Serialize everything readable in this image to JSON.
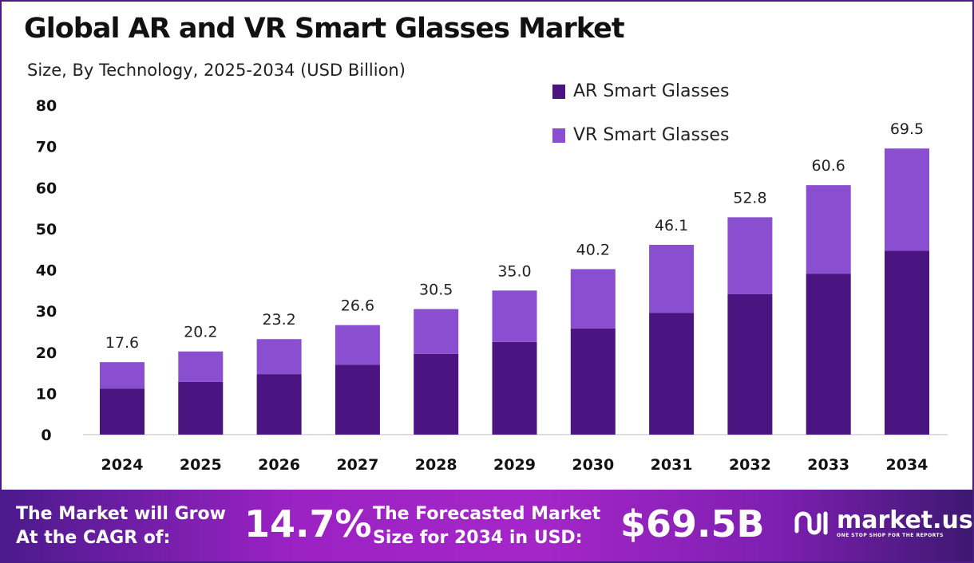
{
  "chart_data": {
    "type": "bar",
    "stacked": true,
    "title": "Global AR and VR Smart Glasses Market",
    "subtitle": "Size, By Technology, 2025-2034 (USD Billion)",
    "categories": [
      "2024",
      "2025",
      "2026",
      "2027",
      "2028",
      "2029",
      "2030",
      "2031",
      "2032",
      "2033",
      "2034"
    ],
    "series": [
      {
        "name": "AR Smart Glasses",
        "color": "#4a1580",
        "values": [
          11.2,
          12.8,
          14.7,
          17.0,
          19.6,
          22.5,
          25.8,
          29.6,
          34.1,
          39.1,
          44.7
        ]
      },
      {
        "name": "VR Smart Glasses",
        "color": "#8a4fd0",
        "values": [
          6.4,
          7.4,
          8.5,
          9.6,
          10.9,
          12.5,
          14.4,
          16.5,
          18.7,
          21.5,
          24.8
        ]
      }
    ],
    "totals": [
      "17.6",
      "20.2",
      "23.2",
      "26.6",
      "30.5",
      "35.0",
      "40.2",
      "46.1",
      "52.8",
      "60.6",
      "69.5"
    ],
    "yticks": [
      "0",
      "10",
      "20",
      "30",
      "40",
      "50",
      "60",
      "70",
      "80"
    ],
    "ylim": [
      0,
      80
    ],
    "grid": false,
    "legend": "top-right"
  },
  "footer": {
    "cagr_label_1": "The Market will Grow",
    "cagr_label_2": "At the CAGR of:",
    "cagr_value": "14.7%",
    "forecast_label_1": "The Forecasted Market",
    "forecast_label_2": "Size for 2034 in USD:",
    "forecast_value": "$69.5B",
    "logo_text": "market.us",
    "logo_tagline": "ONE STOP SHOP FOR THE REPORTS"
  }
}
